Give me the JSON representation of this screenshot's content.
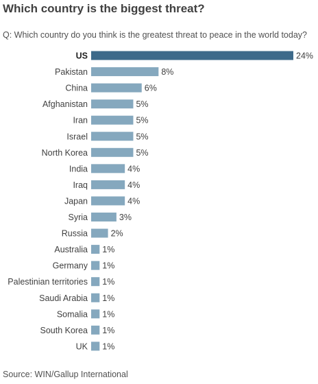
{
  "title": "Which country is the biggest threat?",
  "question": "Q: Which country do you think is the greatest threat to peace in the world today?",
  "source": "Source: WIN/Gallup International",
  "colors": {
    "highlight": "#3d6a8a",
    "bar": "#85a8be",
    "text": "#404040"
  },
  "chart_data": {
    "type": "bar",
    "orientation": "horizontal",
    "unit": "%",
    "title": "Which country is the biggest threat?",
    "highlight_category": "US",
    "categories": [
      "US",
      "Pakistan",
      "China",
      "Afghanistan",
      "Iran",
      "Israel",
      "North Korea",
      "India",
      "Iraq",
      "Japan",
      "Syria",
      "Russia",
      "Australia",
      "Germany",
      "Palestinian territories",
      "Saudi Arabia",
      "Somalia",
      "South Korea",
      "UK"
    ],
    "values": [
      24,
      8,
      6,
      5,
      5,
      5,
      5,
      4,
      4,
      4,
      3,
      2,
      1,
      1,
      1,
      1,
      1,
      1,
      1
    ],
    "labels": [
      "24%",
      "8%",
      "6%",
      "5%",
      "5%",
      "5%",
      "5%",
      "4%",
      "4%",
      "4%",
      "3%",
      "2%",
      "1%",
      "1%",
      "1%",
      "1%",
      "1%",
      "1%",
      "1%"
    ],
    "xlim": [
      0,
      24
    ],
    "grid": false,
    "legend": "none"
  }
}
